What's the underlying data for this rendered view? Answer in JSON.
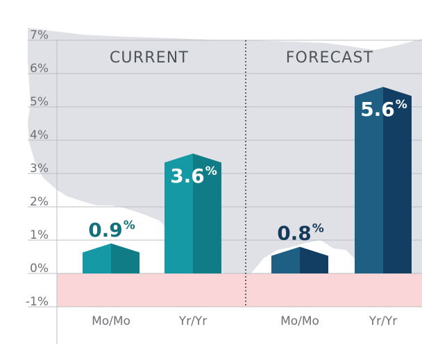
{
  "chart_data": {
    "type": "bar",
    "ylim": [
      -1,
      7
    ],
    "y_ticks": [
      "7%",
      "6%",
      "5%",
      "4%",
      "3%",
      "2%",
      "1%",
      "0%",
      "-1%"
    ],
    "grid": true,
    "panels": [
      {
        "title": "CURRENT",
        "categories": [
          "Mo/Mo",
          "Yr/Yr"
        ],
        "values": [
          0.9,
          3.6
        ],
        "value_labels": [
          "0.9",
          "3.6"
        ],
        "colors": [
          {
            "front": "#159aa5",
            "side": "#0f7c86"
          },
          {
            "front": "#159aa5",
            "side": "#0f7c86"
          }
        ],
        "label_colors": [
          "#14707a",
          "#ffffff"
        ]
      },
      {
        "title": "FORECAST",
        "categories": [
          "Mo/Mo",
          "Yr/Yr"
        ],
        "values": [
          0.8,
          5.6
        ],
        "value_labels": [
          "0.8",
          "5.6"
        ],
        "colors": [
          {
            "front": "#1e5f83",
            "side": "#123e63"
          },
          {
            "front": "#1e5f83",
            "side": "#123e63"
          }
        ],
        "label_colors": [
          "#153a5a",
          "#ffffff"
        ]
      }
    ],
    "percent_sign": "%"
  },
  "colors": {
    "map": "#dfe1e6",
    "grid": "#b9bdc4",
    "negative_band": "#fbd6d8",
    "axis_text": "#6d7075",
    "title_text": "#4e5358",
    "divider": "#3f4246"
  }
}
